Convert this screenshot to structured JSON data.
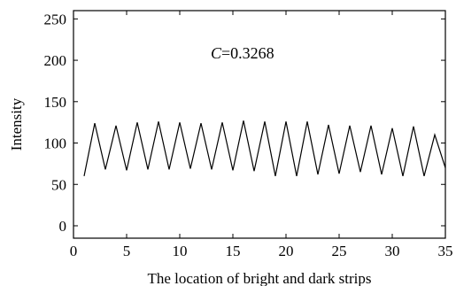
{
  "chart_data": {
    "type": "line",
    "title": "",
    "xlabel": "The location of bright and dark strips",
    "ylabel": "Intensity",
    "xlim": [
      0,
      35
    ],
    "ylim": [
      -15,
      260
    ],
    "xticks": [
      0,
      5,
      10,
      15,
      20,
      25,
      30,
      35
    ],
    "yticks": [
      0,
      50,
      100,
      150,
      200,
      250
    ],
    "grid": false,
    "annotation": {
      "symbol": "C",
      "text": "=0.3268"
    },
    "series": [
      {
        "x": [
          1,
          2,
          3,
          4,
          5,
          6,
          7,
          8,
          9,
          10,
          11,
          12,
          13,
          14,
          15,
          16,
          17,
          18,
          19,
          20,
          21,
          22,
          23,
          24,
          25,
          26,
          27,
          28,
          29,
          30,
          31,
          32,
          33,
          34,
          35
        ],
        "values": [
          60,
          124,
          68,
          121,
          67,
          125,
          68,
          126,
          68,
          125,
          69,
          124,
          68,
          125,
          67,
          127,
          66,
          126,
          60,
          126,
          60,
          126,
          62,
          122,
          63,
          121,
          65,
          121,
          62,
          118,
          60,
          120,
          60,
          110,
          70
        ]
      }
    ]
  }
}
